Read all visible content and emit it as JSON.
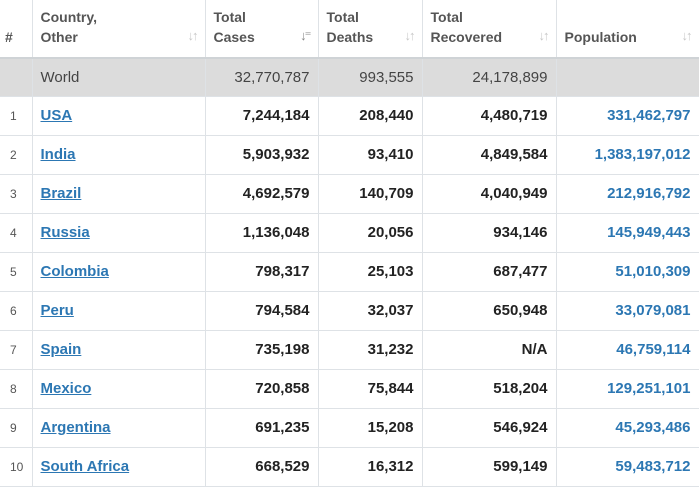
{
  "headers": {
    "rank": "#",
    "country": [
      "Country,",
      "Other"
    ],
    "total_cases": [
      "Total",
      "Cases"
    ],
    "total_deaths": [
      "Total",
      "Deaths"
    ],
    "total_recovered": [
      "Total",
      "Recovered"
    ],
    "population": "Population"
  },
  "icons": {
    "sort": "sort-arrows-icon",
    "sort_active": "sort-descending-icon"
  },
  "colors": {
    "link": "#2c77b3",
    "world_row_bg": "#dcdcdc"
  },
  "world": {
    "country": "World",
    "total_cases": "32,770,787",
    "total_deaths": "993,555",
    "total_recovered": "24,178,899",
    "population": ""
  },
  "rows": [
    {
      "rank": "1",
      "country": "USA",
      "total_cases": "7,244,184",
      "total_deaths": "208,440",
      "total_recovered": "4,480,719",
      "population": "331,462,797"
    },
    {
      "rank": "2",
      "country": "India",
      "total_cases": "5,903,932",
      "total_deaths": "93,410",
      "total_recovered": "4,849,584",
      "population": "1,383,197,012"
    },
    {
      "rank": "3",
      "country": "Brazil",
      "total_cases": "4,692,579",
      "total_deaths": "140,709",
      "total_recovered": "4,040,949",
      "population": "212,916,792"
    },
    {
      "rank": "4",
      "country": "Russia",
      "total_cases": "1,136,048",
      "total_deaths": "20,056",
      "total_recovered": "934,146",
      "population": "145,949,443"
    },
    {
      "rank": "5",
      "country": "Colombia",
      "total_cases": "798,317",
      "total_deaths": "25,103",
      "total_recovered": "687,477",
      "population": "51,010,309"
    },
    {
      "rank": "6",
      "country": "Peru",
      "total_cases": "794,584",
      "total_deaths": "32,037",
      "total_recovered": "650,948",
      "population": "33,079,081"
    },
    {
      "rank": "7",
      "country": "Spain",
      "total_cases": "735,198",
      "total_deaths": "31,232",
      "total_recovered": "N/A",
      "population": "46,759,114"
    },
    {
      "rank": "8",
      "country": "Mexico",
      "total_cases": "720,858",
      "total_deaths": "75,844",
      "total_recovered": "518,204",
      "population": "129,251,101"
    },
    {
      "rank": "9",
      "country": "Argentina",
      "total_cases": "691,235",
      "total_deaths": "15,208",
      "total_recovered": "546,924",
      "population": "45,293,486"
    },
    {
      "rank": "10",
      "country": "South Africa",
      "total_cases": "668,529",
      "total_deaths": "16,312",
      "total_recovered": "599,149",
      "population": "59,483,712"
    }
  ]
}
